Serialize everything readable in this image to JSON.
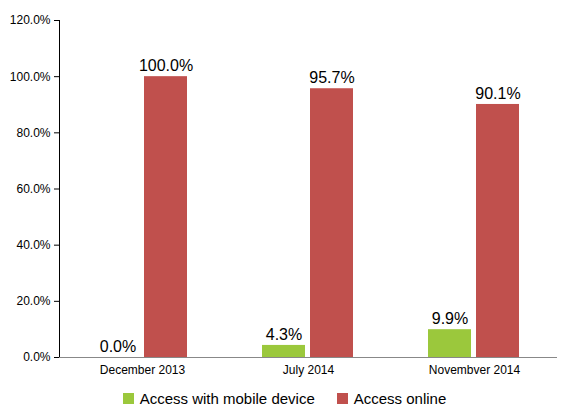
{
  "chart_data": {
    "type": "bar",
    "categories": [
      "December 2013",
      "July 2014",
      "Novembver 2014"
    ],
    "series": [
      {
        "name": "Access with mobile device",
        "color": "#9bc83c",
        "values": [
          0,
          4.3,
          9.9
        ],
        "value_labels": [
          "0.0%",
          "4.3%",
          "9.9%"
        ]
      },
      {
        "name": "Access online",
        "color": "#c0504d",
        "values": [
          100,
          95.7,
          90.1
        ],
        "value_labels": [
          "100.0%",
          "95.7%",
          "90.1%"
        ]
      }
    ],
    "ylim": [
      0,
      120
    ],
    "yticks": [
      {
        "value": 0,
        "label": "0.0%"
      },
      {
        "value": 20,
        "label": "20.0%"
      },
      {
        "value": 40,
        "label": "40.0%"
      },
      {
        "value": 60,
        "label": "60.0%"
      },
      {
        "value": 80,
        "label": "80.0%"
      },
      {
        "value": 100,
        "label": "100.0%"
      },
      {
        "value": 120,
        "label": "120.0%"
      }
    ],
    "grid": false,
    "legend": "bottom",
    "data_labels": true
  }
}
